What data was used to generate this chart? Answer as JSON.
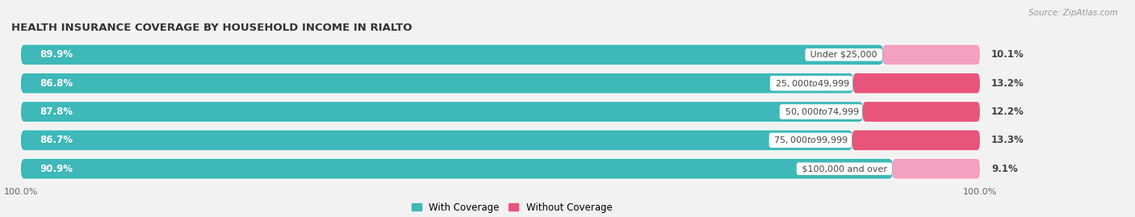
{
  "title": "HEALTH INSURANCE COVERAGE BY HOUSEHOLD INCOME IN RIALTO",
  "source": "Source: ZipAtlas.com",
  "categories": [
    "Under $25,000",
    "$25,000 to $49,999",
    "$50,000 to $74,999",
    "$75,000 to $99,999",
    "$100,000 and over"
  ],
  "with_coverage": [
    89.9,
    86.8,
    87.8,
    86.7,
    90.9
  ],
  "without_coverage": [
    10.1,
    13.2,
    12.2,
    13.3,
    9.1
  ],
  "color_with": "#3eb8b8",
  "color_without_high": "#e8547a",
  "color_without_low": "#f4a0c0",
  "bg_color": "#f2f2f2",
  "bar_bg": "#e0e0e0",
  "title_fontsize": 9.5,
  "label_fontsize": 8.5,
  "tick_fontsize": 8,
  "bar_height": 0.68,
  "xlim_max": 115
}
